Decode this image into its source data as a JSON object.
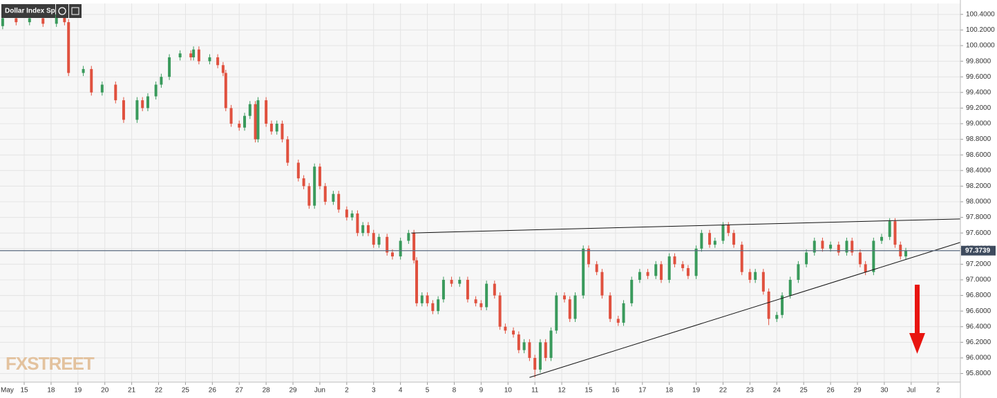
{
  "chart_data": {
    "type": "candlestick",
    "title": "Dollar Index Spot",
    "watermark": "FXSTREET",
    "up_color": "#3a9a5c",
    "down_color": "#e0513f",
    "grid": true,
    "xlim": [
      0.1,
      35.83
    ],
    "ylim": [
      95.69,
      100.54
    ],
    "xticks": [
      {
        "value": 0,
        "label": "May"
      },
      {
        "value": 1,
        "label": "15"
      },
      {
        "value": 2,
        "label": "18"
      },
      {
        "value": 3,
        "label": "19"
      },
      {
        "value": 4,
        "label": "20"
      },
      {
        "value": 5,
        "label": "21"
      },
      {
        "value": 6,
        "label": "22"
      },
      {
        "value": 7,
        "label": "25"
      },
      {
        "value": 8,
        "label": "26"
      },
      {
        "value": 9,
        "label": "27"
      },
      {
        "value": 10,
        "label": "28"
      },
      {
        "value": 11,
        "label": "29"
      },
      {
        "value": 12,
        "label": "Jun"
      },
      {
        "value": 13,
        "label": "2"
      },
      {
        "value": 14,
        "label": "3"
      },
      {
        "value": 15,
        "label": "4"
      },
      {
        "value": 16,
        "label": "5"
      },
      {
        "value": 17,
        "label": "8"
      },
      {
        "value": 18,
        "label": "9"
      },
      {
        "value": 19,
        "label": "10"
      },
      {
        "value": 20,
        "label": "11"
      },
      {
        "value": 21,
        "label": "12"
      },
      {
        "value": 22,
        "label": "15"
      },
      {
        "value": 23,
        "label": "16"
      },
      {
        "value": 24,
        "label": "17"
      },
      {
        "value": 25,
        "label": "18"
      },
      {
        "value": 26,
        "label": "19"
      },
      {
        "value": 27,
        "label": "22"
      },
      {
        "value": 28,
        "label": "23"
      },
      {
        "value": 29,
        "label": "24"
      },
      {
        "value": 30,
        "label": "25"
      },
      {
        "value": 31,
        "label": "26"
      },
      {
        "value": 32,
        "label": "29"
      },
      {
        "value": 33,
        "label": "30"
      },
      {
        "value": 34,
        "label": "Jul"
      },
      {
        "value": 35,
        "label": "2"
      }
    ],
    "yticks": [
      {
        "value": 95.8,
        "label": "95.8000"
      },
      {
        "value": 96.0,
        "label": "96.0000"
      },
      {
        "value": 96.2,
        "label": "96.2000"
      },
      {
        "value": 96.4,
        "label": "96.4000"
      },
      {
        "value": 96.6,
        "label": "96.6000"
      },
      {
        "value": 96.8,
        "label": "96.8000"
      },
      {
        "value": 97.0,
        "label": "97.0000"
      },
      {
        "value": 97.2,
        "label": "97.2000"
      },
      {
        "value": 97.4,
        "label": "97.4000"
      },
      {
        "value": 97.6,
        "label": "97.6000"
      },
      {
        "value": 97.8,
        "label": "97.8000"
      },
      {
        "value": 98.0,
        "label": "98.0000"
      },
      {
        "value": 98.2,
        "label": "98.2000"
      },
      {
        "value": 98.4,
        "label": "98.4000"
      },
      {
        "value": 98.6,
        "label": "98.6000"
      },
      {
        "value": 98.8,
        "label": "98.8000"
      },
      {
        "value": 99.0,
        "label": "99.0000"
      },
      {
        "value": 99.2,
        "label": "99.2000"
      },
      {
        "value": 99.4,
        "label": "99.4000"
      },
      {
        "value": 99.6,
        "label": "99.6000"
      },
      {
        "value": 99.8,
        "label": "99.8000"
      },
      {
        "value": 100.0,
        "label": "100.0000"
      },
      {
        "value": 100.2,
        "label": "100.2000"
      },
      {
        "value": 100.4,
        "label": "100.4000"
      }
    ],
    "last_price": 97.3739,
    "trendlines": [
      {
        "x": [
          15.4,
          35.83
        ],
        "y": [
          97.6,
          97.78
        ]
      },
      {
        "x": [
          19.8,
          35.83
        ],
        "y": [
          95.75,
          97.48
        ]
      }
    ],
    "x": [
      0.2,
      0.7,
      1.2,
      1.7,
      2.2,
      2.5,
      2.65,
      3.2,
      3.5,
      3.9,
      4.4,
      4.7,
      5.2,
      5.4,
      5.6,
      5.9,
      6.1,
      6.4,
      6.8,
      7.2,
      7.3,
      7.5,
      7.9,
      8.2,
      8.4,
      8.5,
      8.7,
      9.0,
      9.2,
      9.4,
      9.6,
      9.7,
      10.0,
      10.2,
      10.4,
      10.6,
      10.8,
      11.2,
      11.4,
      11.6,
      11.8,
      12.0,
      12.2,
      12.5,
      12.7,
      13.0,
      13.2,
      13.4,
      13.6,
      13.8,
      14.0,
      14.2,
      14.5,
      14.7,
      15.0,
      15.3,
      15.5,
      15.6,
      15.8,
      16.0,
      16.2,
      16.4,
      16.6,
      16.9,
      17.2,
      17.5,
      17.8,
      18.0,
      18.2,
      18.5,
      18.7,
      18.9,
      19.2,
      19.4,
      19.6,
      19.8,
      20.0,
      20.2,
      20.4,
      20.6,
      20.8,
      21.1,
      21.3,
      21.5,
      21.8,
      22.0,
      22.3,
      22.5,
      22.8,
      23.1,
      23.3,
      23.6,
      23.9,
      24.2,
      24.5,
      24.7,
      25.0,
      25.2,
      25.5,
      25.7,
      26.0,
      26.2,
      26.5,
      26.7,
      27.0,
      27.2,
      27.4,
      27.7,
      28.0,
      28.2,
      28.5,
      28.7,
      29.0,
      29.2,
      29.5,
      29.8,
      30.1,
      30.4,
      30.7,
      31.0,
      31.3,
      31.6,
      31.8,
      32.1,
      32.3,
      32.6,
      32.9,
      33.2,
      33.4,
      33.6,
      33.8
    ],
    "open": [
      100.25,
      100.35,
      100.3,
      100.35,
      100.28,
      100.4,
      100.3,
      99.65,
      99.7,
      99.4,
      99.5,
      99.3,
      99.05,
      99.3,
      99.2,
      99.35,
      99.5,
      99.6,
      99.85,
      99.9,
      99.85,
      99.95,
      99.8,
      99.85,
      99.75,
      99.65,
      99.2,
      99.0,
      98.95,
      99.1,
      99.25,
      98.8,
      99.3,
      99.0,
      98.9,
      99.0,
      98.8,
      98.5,
      98.3,
      98.2,
      97.95,
      98.45,
      98.2,
      98.0,
      98.1,
      97.9,
      97.8,
      97.85,
      97.6,
      97.7,
      97.6,
      97.45,
      97.55,
      97.35,
      97.3,
      97.5,
      97.6,
      97.25,
      96.7,
      96.8,
      96.7,
      96.6,
      96.75,
      97.0,
      96.95,
      97.0,
      96.75,
      96.7,
      96.65,
      96.95,
      96.8,
      96.4,
      96.35,
      96.3,
      96.1,
      96.2,
      96.0,
      95.85,
      96.2,
      96.0,
      96.35,
      96.8,
      96.75,
      96.5,
      96.8,
      97.4,
      97.2,
      97.1,
      96.8,
      96.5,
      96.45,
      96.7,
      97.0,
      97.1,
      97.05,
      97.2,
      97.0,
      97.3,
      97.2,
      97.15,
      97.05,
      97.4,
      97.6,
      97.45,
      97.5,
      97.7,
      97.6,
      97.45,
      97.1,
      97.0,
      97.1,
      96.85,
      96.5,
      96.55,
      96.8,
      97.0,
      97.2,
      97.35,
      97.5,
      97.4,
      97.45,
      97.35,
      97.5,
      97.35,
      97.2,
      97.1,
      97.5,
      97.55,
      97.75,
      97.45,
      97.3
    ],
    "high": [
      100.39,
      100.39,
      100.39,
      100.39,
      100.44,
      100.44,
      100.34,
      99.74,
      99.74,
      99.54,
      99.54,
      99.34,
      99.34,
      99.34,
      99.39,
      99.54,
      99.64,
      99.89,
      99.94,
      99.94,
      99.99,
      99.99,
      99.89,
      99.89,
      99.79,
      99.69,
      99.24,
      99.04,
      99.14,
      99.29,
      99.29,
      99.34,
      99.34,
      99.04,
      99.04,
      99.04,
      98.84,
      98.54,
      98.34,
      98.24,
      98.49,
      98.49,
      98.24,
      98.14,
      98.14,
      97.94,
      97.89,
      97.89,
      97.74,
      97.74,
      97.64,
      97.59,
      97.59,
      97.39,
      97.54,
      97.64,
      97.64,
      97.29,
      96.84,
      96.84,
      96.74,
      96.79,
      97.04,
      97.04,
      97.04,
      97.04,
      96.79,
      96.74,
      96.99,
      96.99,
      96.84,
      96.44,
      96.39,
      96.34,
      96.24,
      96.24,
      96.04,
      96.24,
      96.24,
      96.39,
      96.84,
      96.84,
      96.79,
      96.84,
      97.44,
      97.44,
      97.24,
      97.14,
      96.84,
      96.54,
      96.74,
      97.04,
      97.14,
      97.14,
      97.24,
      97.24,
      97.34,
      97.34,
      97.24,
      97.19,
      97.44,
      97.64,
      97.64,
      97.54,
      97.74,
      97.74,
      97.64,
      97.49,
      97.14,
      97.14,
      97.14,
      96.89,
      96.59,
      96.84,
      97.04,
      97.24,
      97.39,
      97.54,
      97.54,
      97.49,
      97.49,
      97.54,
      97.54,
      97.39,
      97.24,
      97.54,
      97.59,
      97.79,
      97.79,
      97.49,
      97.41
    ],
    "low": [
      100.21,
      100.26,
      100.26,
      100.24,
      100.24,
      100.26,
      99.61,
      99.61,
      99.36,
      99.36,
      99.26,
      99.01,
      99.01,
      99.16,
      99.16,
      99.31,
      99.46,
      99.56,
      99.81,
      99.81,
      99.81,
      99.76,
      99.76,
      99.71,
      99.61,
      99.16,
      98.96,
      98.91,
      98.91,
      99.06,
      98.76,
      98.76,
      98.96,
      98.86,
      98.86,
      98.76,
      98.46,
      98.26,
      98.16,
      97.91,
      97.91,
      98.16,
      97.96,
      97.96,
      97.86,
      97.76,
      97.76,
      97.56,
      97.56,
      97.56,
      97.41,
      97.41,
      97.31,
      97.26,
      97.26,
      97.46,
      97.21,
      96.66,
      96.66,
      96.66,
      96.56,
      96.56,
      96.71,
      96.91,
      96.91,
      96.71,
      96.66,
      96.61,
      96.61,
      96.76,
      96.36,
      96.31,
      96.26,
      96.06,
      96.06,
      95.96,
      95.75,
      95.81,
      95.96,
      95.96,
      96.31,
      96.71,
      96.46,
      96.46,
      96.76,
      97.16,
      97.06,
      96.76,
      96.46,
      96.41,
      96.41,
      96.66,
      96.96,
      97.01,
      97.01,
      96.96,
      96.96,
      97.16,
      97.11,
      97.01,
      97.01,
      97.36,
      97.41,
      97.41,
      97.46,
      97.56,
      97.41,
      97.06,
      96.96,
      96.96,
      96.81,
      96.42,
      96.46,
      96.51,
      96.76,
      96.96,
      97.16,
      97.31,
      97.36,
      97.36,
      97.31,
      97.31,
      97.31,
      97.16,
      97.06,
      97.06,
      97.46,
      97.51,
      97.41,
      97.26,
      97.26
    ],
    "close": [
      100.35,
      100.3,
      100.35,
      100.28,
      100.4,
      100.3,
      99.65,
      99.7,
      99.4,
      99.5,
      99.3,
      99.05,
      99.3,
      99.2,
      99.35,
      99.5,
      99.6,
      99.85,
      99.9,
      99.85,
      99.95,
      99.8,
      99.85,
      99.75,
      99.65,
      99.2,
      99.0,
      98.95,
      99.1,
      99.25,
      98.8,
      99.3,
      99.0,
      98.9,
      99.0,
      98.8,
      98.5,
      98.3,
      98.2,
      97.95,
      98.45,
      98.2,
      98.0,
      98.1,
      97.9,
      97.8,
      97.85,
      97.6,
      97.7,
      97.6,
      97.45,
      97.55,
      97.35,
      97.3,
      97.5,
      97.6,
      97.25,
      96.7,
      96.8,
      96.7,
      96.6,
      96.75,
      97.0,
      96.95,
      97.0,
      96.75,
      96.7,
      96.65,
      96.95,
      96.8,
      96.4,
      96.35,
      96.3,
      96.1,
      96.2,
      96.0,
      95.85,
      96.2,
      96.0,
      96.35,
      96.8,
      96.75,
      96.5,
      96.8,
      97.4,
      97.2,
      97.1,
      96.8,
      96.5,
      96.45,
      96.7,
      97.0,
      97.1,
      97.05,
      97.2,
      97.0,
      97.3,
      97.2,
      97.15,
      97.05,
      97.4,
      97.6,
      97.45,
      97.5,
      97.7,
      97.6,
      97.45,
      97.1,
      97.0,
      97.1,
      96.85,
      96.5,
      96.55,
      96.8,
      97.0,
      97.2,
      97.35,
      97.5,
      97.4,
      97.45,
      97.35,
      97.5,
      97.35,
      97.2,
      97.1,
      97.5,
      97.55,
      97.75,
      97.45,
      97.3,
      97.37
    ]
  }
}
